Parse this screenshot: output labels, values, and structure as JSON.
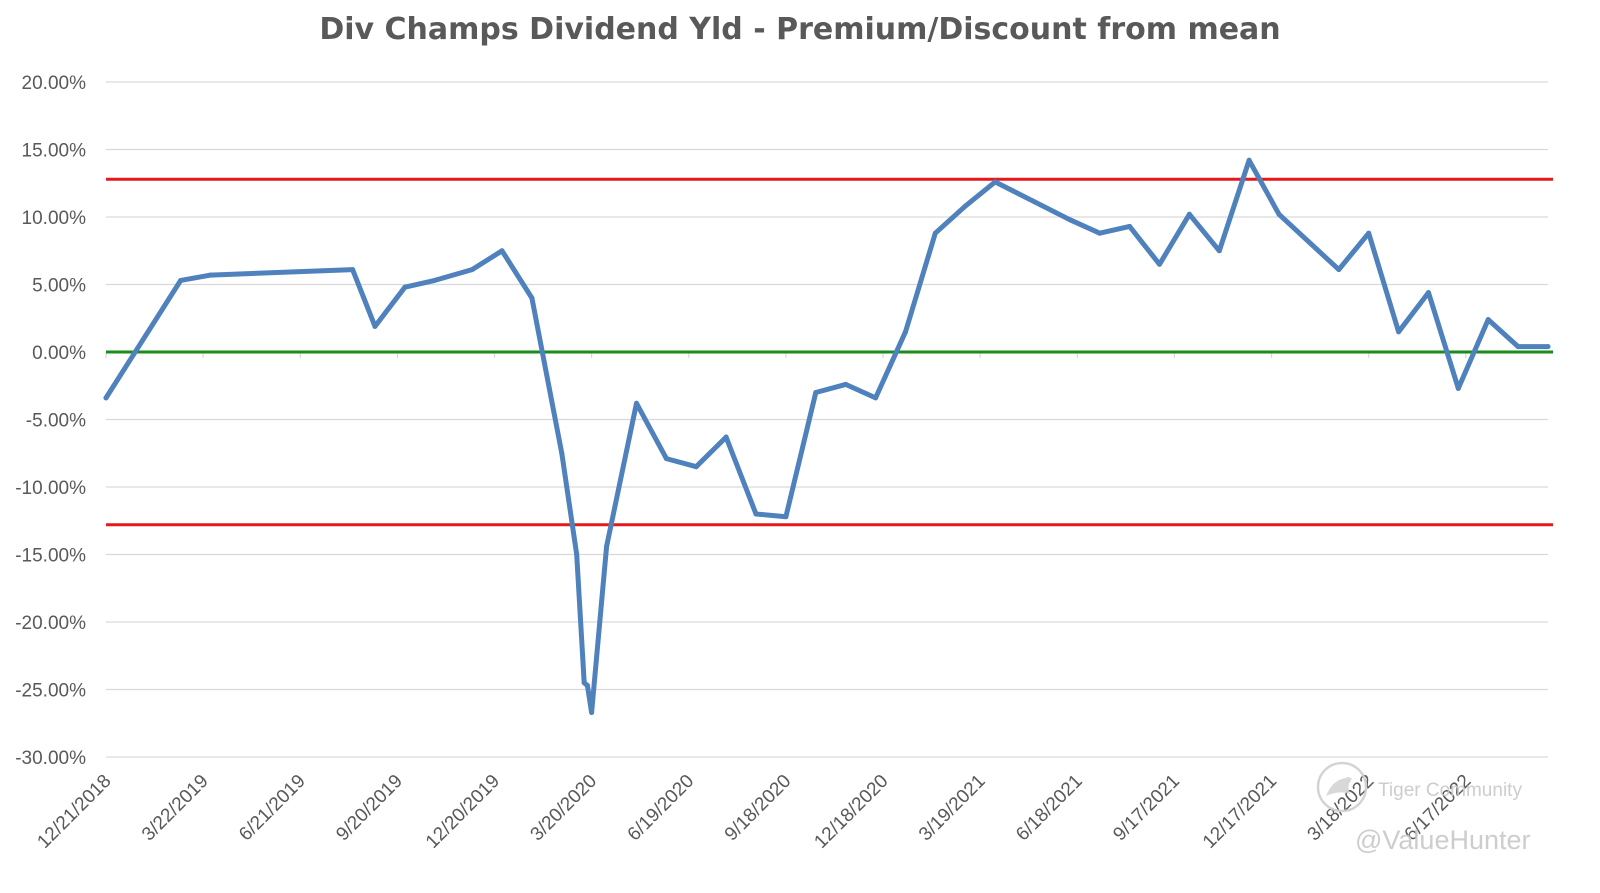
{
  "chart_data": {
    "type": "line",
    "title": "Div Champs Dividend Yld - Premium/Discount from mean",
    "xlabel": "",
    "ylabel": "",
    "ylim": [
      -30,
      20
    ],
    "yticks": [
      20,
      15,
      10,
      5,
      0,
      -5,
      -10,
      -15,
      -20,
      -25,
      -30
    ],
    "ytick_labels": [
      "20.00%",
      "15.00%",
      "10.00%",
      "5.00%",
      "0.00%",
      "-5.00%",
      "-10.00%",
      "-15.00%",
      "-20.00%",
      "-25.00%",
      "-30.00%"
    ],
    "xlim": [
      "2018-12-21",
      "2022-09-02"
    ],
    "xticks": [
      "2018-12-21",
      "2019-03-22",
      "2019-06-21",
      "2019-09-20",
      "2019-12-20",
      "2020-03-20",
      "2020-06-19",
      "2020-09-18",
      "2020-12-18",
      "2021-03-19",
      "2021-06-18",
      "2021-09-17",
      "2021-12-17",
      "2022-03-18",
      "2022-06-17"
    ],
    "xtick_labels": [
      "12/21/2018",
      "3/22/2019",
      "6/21/2019",
      "9/20/2019",
      "12/20/2019",
      "3/20/2020",
      "6/19/2020",
      "9/18/2020",
      "12/18/2020",
      "3/19/2021",
      "6/18/2021",
      "9/17/2021",
      "12/17/2021",
      "3/18/2022",
      "6/17/2022"
    ],
    "grid": true,
    "colors": {
      "series": "#4f81bd",
      "upper_band": "#e31a1c",
      "lower_band": "#e31a1c",
      "zero_line": "#1a8c1a",
      "grid": "#d9d9d9"
    },
    "reference_lines": [
      {
        "y": 12.8,
        "color": "#e31a1c"
      },
      {
        "y": 0,
        "color": "#1a8c1a"
      },
      {
        "y": -12.8,
        "color": "#e31a1c"
      }
    ],
    "series": [
      {
        "x": [
          "2018-12-21",
          "2019-03-01",
          "2019-03-29",
          "2019-08-09",
          "2019-08-30",
          "2019-09-27",
          "2019-10-25",
          "2019-11-29",
          "2019-12-27",
          "2020-01-24",
          "2020-02-21",
          "2020-03-06",
          "2020-03-13",
          "2020-03-16",
          "2020-03-20",
          "2020-04-03",
          "2020-05-01",
          "2020-05-29",
          "2020-06-26",
          "2020-07-24",
          "2020-08-21",
          "2020-09-18",
          "2020-10-16",
          "2020-11-13",
          "2020-12-11",
          "2021-01-08",
          "2021-02-05",
          "2021-03-05",
          "2021-04-02",
          "2021-06-11",
          "2021-07-09",
          "2021-08-06",
          "2021-09-03",
          "2021-10-01",
          "2021-10-29",
          "2021-11-26",
          "2021-12-24",
          "2022-02-18",
          "2022-03-18",
          "2022-04-15",
          "2022-05-13",
          "2022-06-10",
          "2022-07-08",
          "2022-08-05",
          "2022-09-02"
        ],
        "y": [
          -3.4,
          5.3,
          5.7,
          6.1,
          1.9,
          4.8,
          5.3,
          6.1,
          7.5,
          4.0,
          -7.5,
          -15.0,
          -24.5,
          -24.7,
          -26.7,
          -14.4,
          -3.8,
          -7.9,
          -8.5,
          -6.3,
          -12.0,
          -12.2,
          -3.0,
          -2.4,
          -3.4,
          1.5,
          8.8,
          10.8,
          12.6,
          9.8,
          8.8,
          9.3,
          6.5,
          10.2,
          7.5,
          14.2,
          10.2,
          6.1,
          8.8,
          1.5,
          4.4,
          -2.7,
          2.4,
          0.4,
          0.4
        ]
      }
    ]
  },
  "watermark": {
    "brand_text": "Tiger Community",
    "handle_text": "@ValueHunter",
    "logo_icon": "tiger-logo-icon"
  }
}
